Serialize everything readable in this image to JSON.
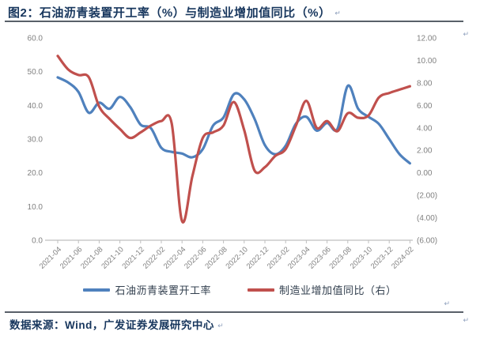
{
  "header": {
    "figure_title": "图2：石油沥青装置开工率（%）与制造业增加值同比（%）",
    "return_mark": "↵"
  },
  "footer": {
    "source": "数据来源：Wind，广发证券发展研究中心",
    "return_mark": "↵"
  },
  "legend": {
    "items": [
      {
        "label": "石油沥青装置开工率",
        "color": "#4f81bd"
      },
      {
        "label": "制造业增加值同比（右）",
        "color": "#c0504d"
      }
    ]
  },
  "colors": {
    "title": "#17365d",
    "rule": "#596069",
    "axis_text": "#808080",
    "axis_line": "#bfbfbf",
    "legend_text": "#33404f",
    "mark": "#8fa0bd",
    "series_blue": "#4f81bd",
    "series_red": "#c0504d"
  },
  "chart_data": {
    "type": "line",
    "title": "石油沥青装置开工率（%）与制造业增加值同比（%）",
    "grid": false,
    "legend_position": "bottom",
    "x": [
      "2021-04",
      "2021-05",
      "2021-06",
      "2021-07",
      "2021-08",
      "2021-09",
      "2021-10",
      "2021-11",
      "2021-12",
      "2022-01",
      "2022-02",
      "2022-03",
      "2022-04",
      "2022-05",
      "2022-06",
      "2022-07",
      "2022-08",
      "2022-09",
      "2022-10",
      "2022-11",
      "2022-12",
      "2023-01",
      "2023-02",
      "2023-03",
      "2023-04",
      "2023-05",
      "2023-06",
      "2023-07",
      "2023-08",
      "2023-09",
      "2023-10",
      "2023-11",
      "2023-12",
      "2024-01",
      "2024-02"
    ],
    "x_tick_labels": [
      "2021-04",
      "2021-06",
      "2021-08",
      "2021-10",
      "2021-12",
      "2022-02",
      "2022-04",
      "2022-06",
      "2022-08",
      "2022-10",
      "2022-12",
      "2023-02",
      "2023-04",
      "2023-06",
      "2023-08",
      "2023-10",
      "2023-12",
      "2024-02"
    ],
    "left_axis": {
      "min": 0,
      "max": 60,
      "tick_step": 10,
      "tick_labels": [
        "0.0",
        "10.0",
        "20.0",
        "30.0",
        "40.0",
        "50.0",
        "60.0"
      ]
    },
    "right_axis": {
      "min": -6,
      "max": 12,
      "tick_step": 2,
      "tick_labels": [
        "(6.00)",
        "(4.00)",
        "(2.00)",
        "0.00",
        "2.00",
        "4.00",
        "6.00",
        "8.00",
        "10.00",
        "12.00"
      ]
    },
    "series": [
      {
        "name": "石油沥青装置开工率",
        "axis": "left",
        "color": "#4f81bd",
        "values": [
          48.3,
          46.8,
          44.0,
          37.8,
          40.8,
          39.0,
          42.5,
          39.5,
          34.3,
          33.2,
          27.4,
          26.2,
          25.7,
          24.6,
          27.0,
          34.0,
          36.4,
          43.3,
          41.8,
          36.0,
          28.2,
          25.5,
          28.0,
          34.6,
          36.6,
          32.5,
          34.8,
          33.0,
          45.8,
          39.0,
          36.6,
          34.5,
          30.0,
          25.5,
          22.8
        ]
      },
      {
        "name": "制造业增加值同比（右）",
        "axis": "right",
        "color": "#c0504d",
        "values": [
          10.4,
          9.2,
          8.7,
          8.5,
          5.9,
          4.8,
          3.9,
          3.1,
          3.6,
          4.2,
          4.6,
          4.4,
          -4.3,
          -0.3,
          3.1,
          3.6,
          4.2,
          6.3,
          3.8,
          0.2,
          0.5,
          1.5,
          2.1,
          4.2,
          6.4,
          4.0,
          4.6,
          3.7,
          5.3,
          4.9,
          5.1,
          6.7,
          7.1,
          7.4,
          7.7
        ]
      }
    ]
  }
}
